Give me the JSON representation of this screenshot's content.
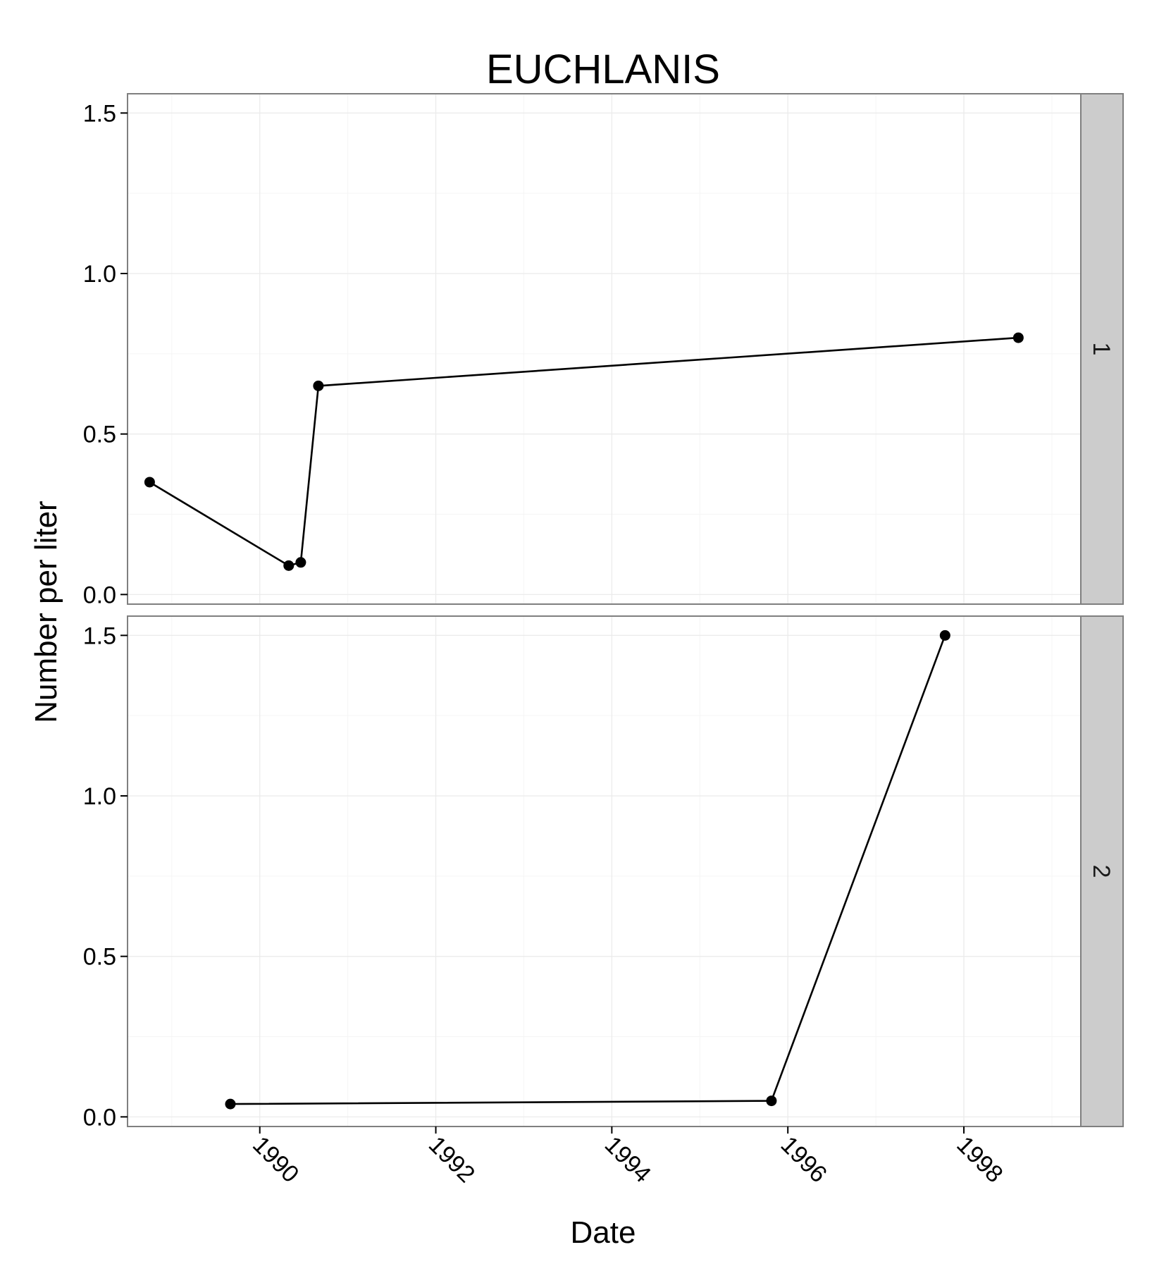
{
  "chart_data": {
    "type": "line",
    "title": "EUCHLANIS",
    "xlabel": "Date",
    "ylabel": "Number per liter",
    "x_ticks": [
      "1990",
      "1992",
      "1994",
      "1996",
      "1998"
    ],
    "y_ticks": [
      "0.0",
      "0.5",
      "1.0",
      "1.5"
    ],
    "xlim": [
      "1988-07-01",
      "1999-05-01"
    ],
    "ylim": [
      -0.03,
      1.56
    ],
    "grid": true,
    "facets": [
      {
        "label": "1",
        "points": [
          {
            "x": "1988-10-01",
            "y": 0.35
          },
          {
            "x": "1990-05-01",
            "y": 0.09
          },
          {
            "x": "1990-06-20",
            "y": 0.1
          },
          {
            "x": "1990-09-01",
            "y": 0.65
          },
          {
            "x": "1998-08-15",
            "y": 0.8
          }
        ]
      },
      {
        "label": "2",
        "points": [
          {
            "x": "1989-09-01",
            "y": 0.04
          },
          {
            "x": "1995-10-25",
            "y": 0.05
          },
          {
            "x": "1997-10-15",
            "y": 1.5
          }
        ]
      }
    ]
  },
  "colors": {
    "series": "#000000",
    "strip_fill": "#cccccc",
    "panel_border": "#7f7f7f",
    "grid": "#ebebeb"
  }
}
